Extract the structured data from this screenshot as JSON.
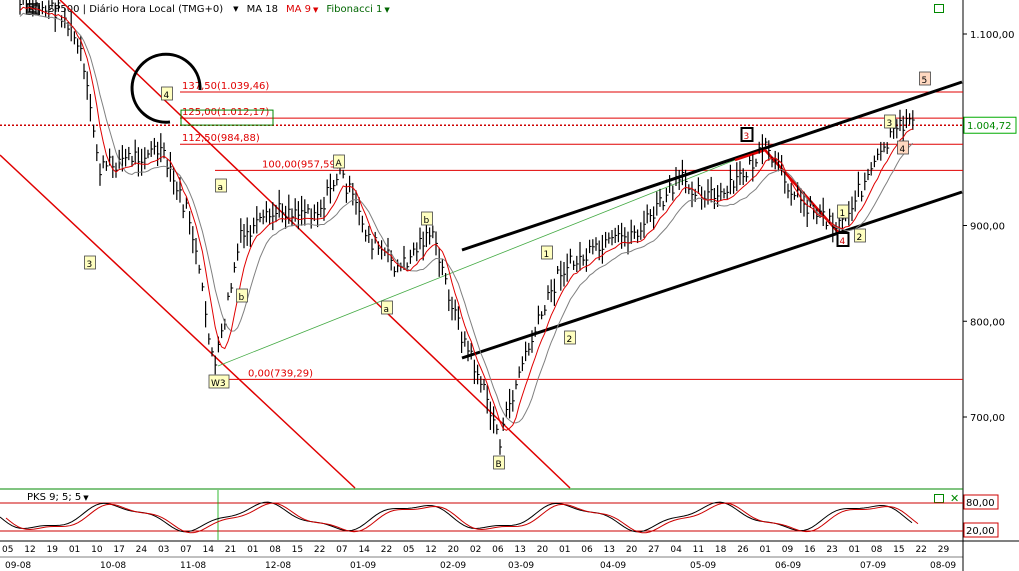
{
  "header": {
    "icon_label": "Eq",
    "symbol": "SP500 | Diário Hora Local (TMG+0)",
    "ma18": "MA 18",
    "ma9": "MA 9",
    "fib": "Fibonacci 1"
  },
  "sub_header": {
    "label": "PKS 9; 5; 5"
  },
  "colors": {
    "ma9": "#e00000",
    "ma18": "#808080",
    "fib": "#e00000",
    "channel": "#000000",
    "trend": "#e00000"
  },
  "chart_data": {
    "type": "line",
    "price_axis": {
      "ticks": [
        "1.100,00",
        "900,00",
        "800,00",
        "700,00"
      ],
      "last_price": "1.004,72"
    },
    "oscillator_axis": {
      "ticks": [
        "80,00",
        "20,00"
      ]
    },
    "fib_levels": [
      {
        "label": "137,50(1.039,46)",
        "value": 1039.46
      },
      {
        "label": "125,00(1.012,17)",
        "value": 1012.17
      },
      {
        "label": "112,50(984,88)",
        "value": 984.88
      },
      {
        "label": "100,00(957,59)",
        "value": 957.59
      },
      {
        "label": "0,00(739,29)",
        "value": 739.29
      }
    ],
    "wave_labels": [
      "3",
      "4",
      "a",
      "b",
      "A",
      "a",
      "b",
      "B",
      "1",
      "2",
      "3",
      "4",
      "2",
      "1",
      "3",
      "4",
      "5",
      "W3"
    ],
    "x_days": [
      "05",
      "12",
      "19",
      "01",
      "10",
      "17",
      "24",
      "03",
      "07",
      "14",
      "21",
      "01",
      "08",
      "15",
      "22",
      "07",
      "14",
      "22",
      "05",
      "12",
      "20",
      "02",
      "06",
      "13",
      "20",
      "01",
      "06",
      "13",
      "20",
      "27",
      "04",
      "11",
      "18",
      "26",
      "01",
      "09",
      "16",
      "23",
      "01",
      "08",
      "15",
      "22",
      "29"
    ],
    "x_months": [
      "09-08",
      "10-08",
      "11-08",
      "12-08",
      "01-09",
      "02-09",
      "03-09",
      "04-09",
      "05-09",
      "06-09",
      "07-09",
      "08-09"
    ]
  }
}
